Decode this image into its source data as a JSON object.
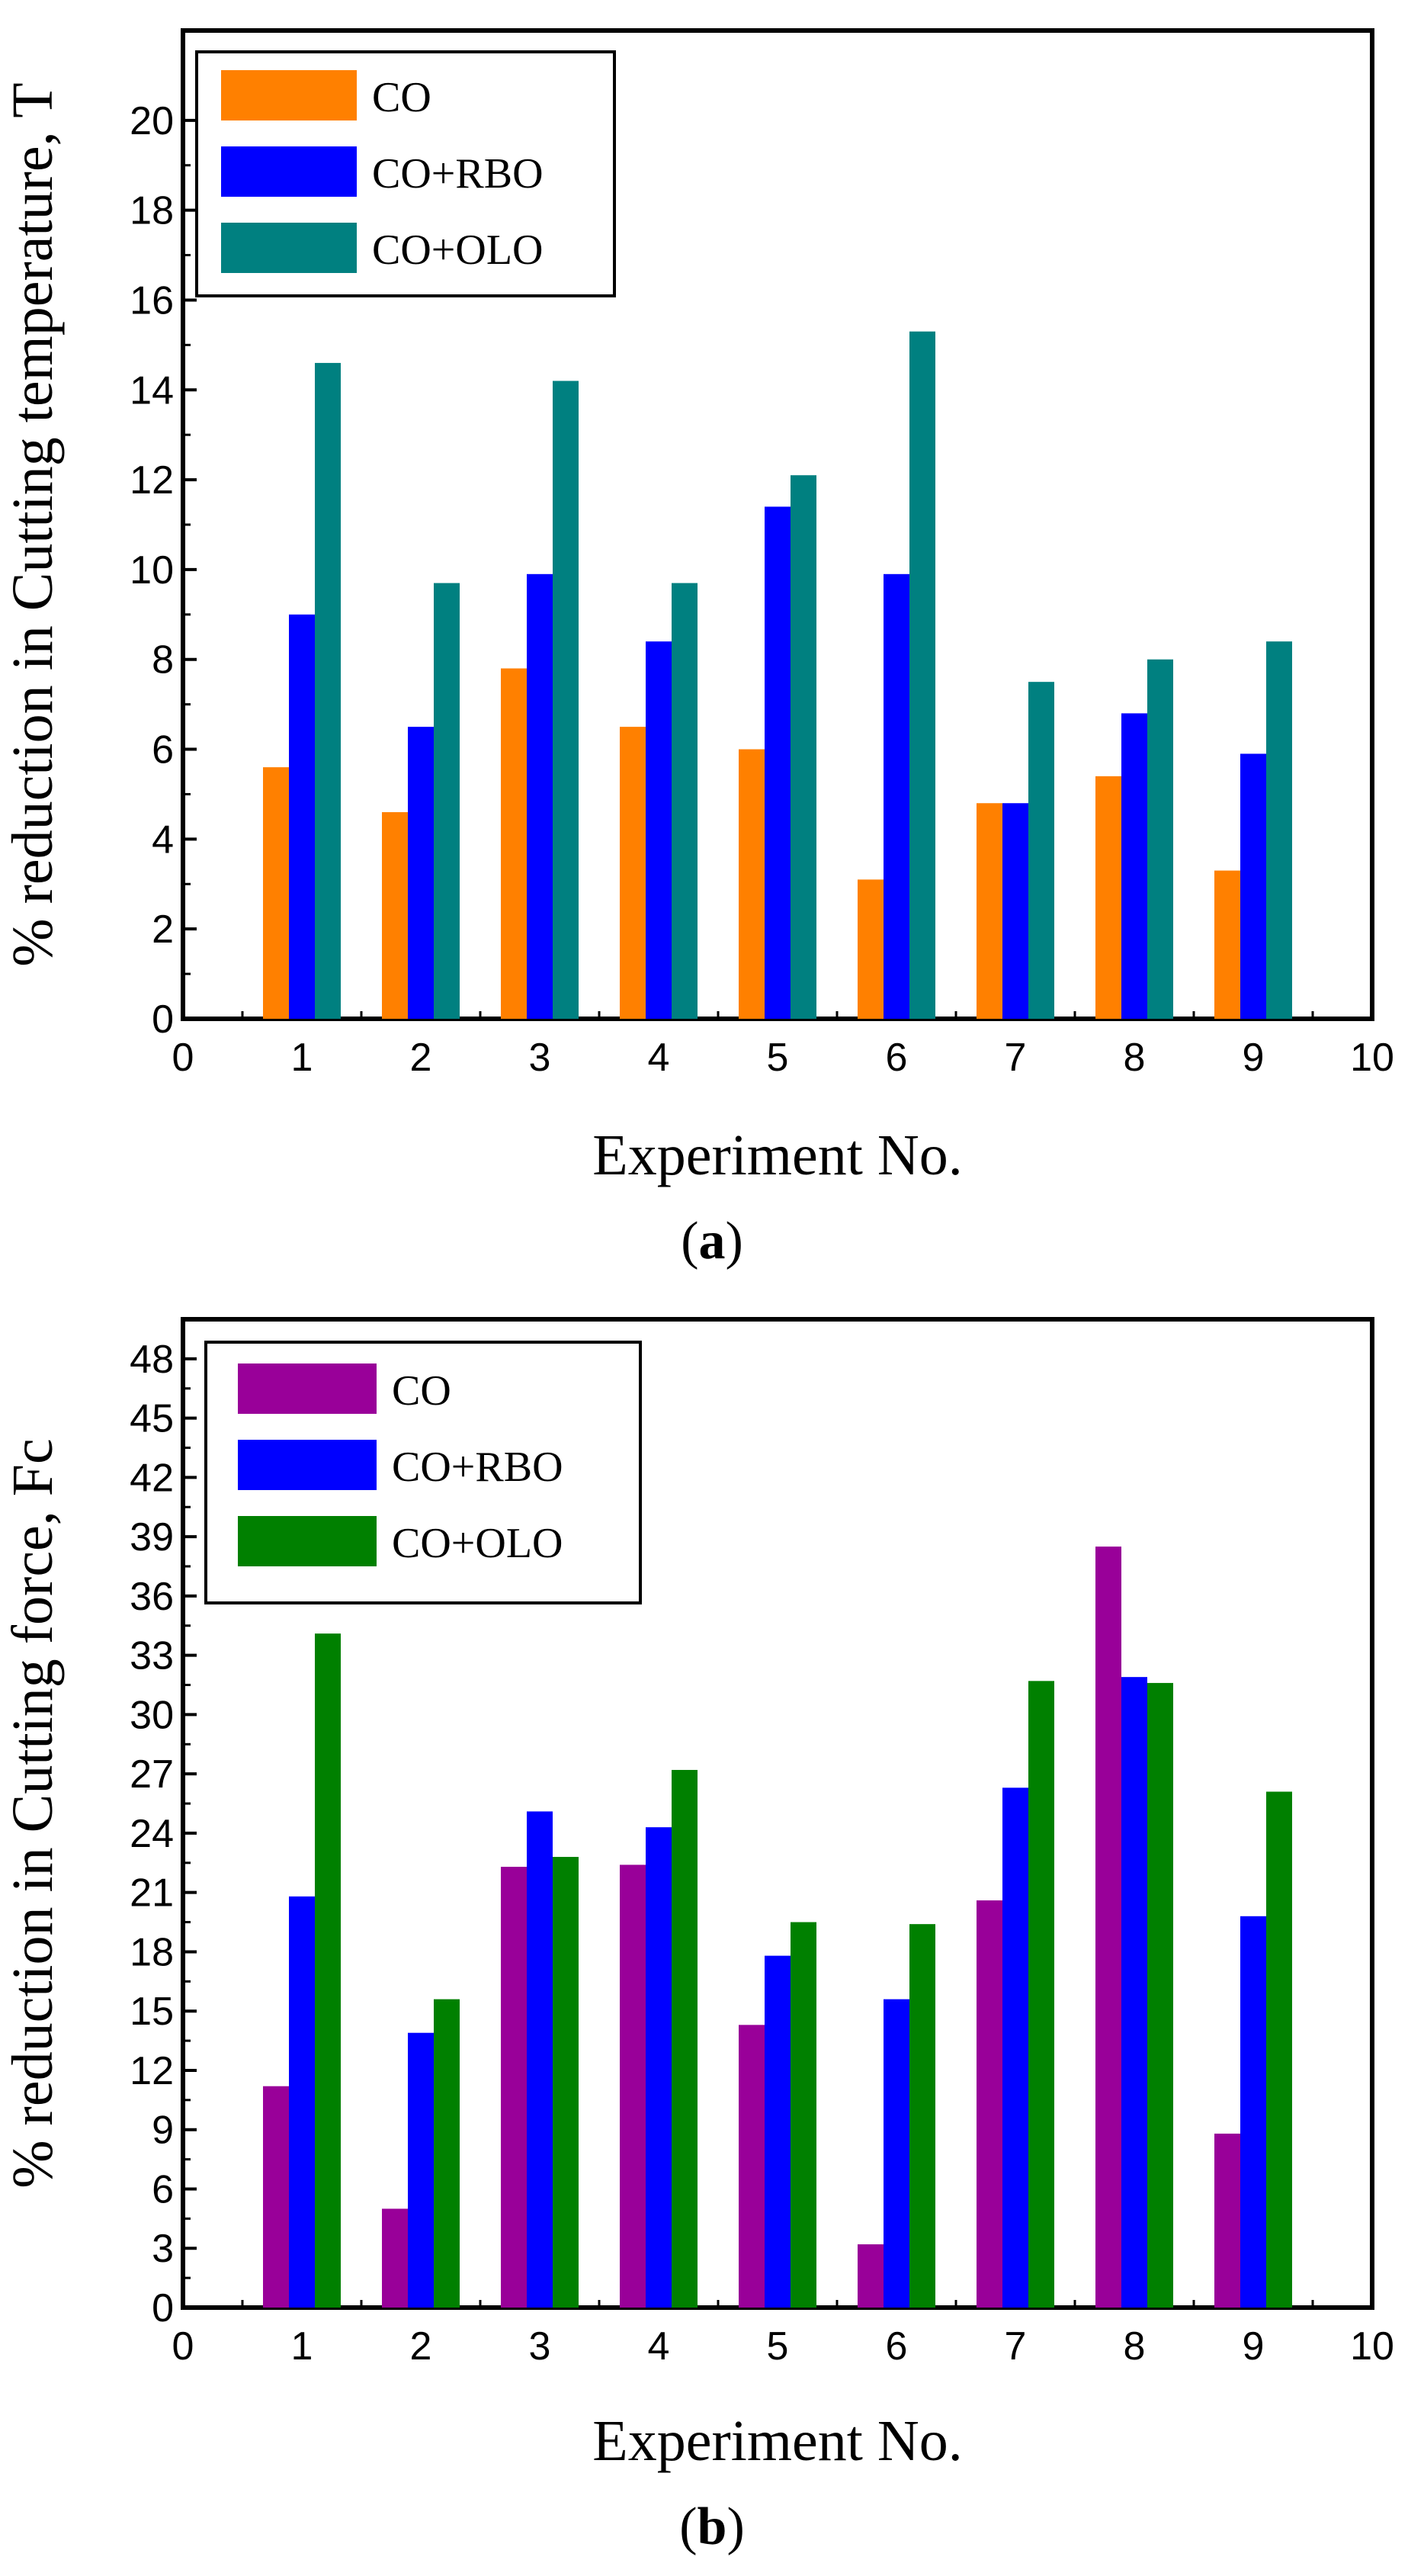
{
  "chart_data": [
    {
      "type": "bar",
      "panel_label": "a",
      "title": "",
      "xlabel": "Experiment No.",
      "ylabel": "% reduction in Cutting temperature, T",
      "xlim": [
        0,
        10
      ],
      "ylim": [
        0,
        22
      ],
      "x_ticks": [
        0,
        1,
        2,
        3,
        4,
        5,
        6,
        7,
        8,
        9,
        10
      ],
      "y_ticks": [
        0,
        2,
        4,
        6,
        8,
        10,
        12,
        14,
        16,
        18,
        20
      ],
      "categories": [
        1,
        2,
        3,
        4,
        5,
        6,
        7,
        8,
        9
      ],
      "legend_position": "top-left",
      "series": [
        {
          "name": "CO",
          "color": "#ff8000",
          "values": [
            5.6,
            4.6,
            7.8,
            6.5,
            6.0,
            3.1,
            4.8,
            5.4,
            3.3
          ]
        },
        {
          "name": "CO+RBO",
          "color": "#0000ff",
          "values": [
            9.0,
            6.5,
            9.9,
            8.4,
            11.4,
            9.9,
            4.8,
            6.8,
            5.9
          ]
        },
        {
          "name": "CO+OLO",
          "color": "#008080",
          "values": [
            14.6,
            9.7,
            14.2,
            9.7,
            12.1,
            15.3,
            7.5,
            8.0,
            8.4
          ]
        }
      ]
    },
    {
      "type": "bar",
      "panel_label": "b",
      "title": "",
      "xlabel": "Experiment No.",
      "ylabel": "% reduction in Cutting force, Fc",
      "xlim": [
        0,
        10
      ],
      "ylim": [
        0,
        50
      ],
      "x_ticks": [
        0,
        1,
        2,
        3,
        4,
        5,
        6,
        7,
        8,
        9,
        10
      ],
      "y_ticks": [
        0,
        3,
        6,
        9,
        12,
        15,
        18,
        21,
        24,
        27,
        30,
        33,
        36,
        39,
        42,
        45,
        48
      ],
      "categories": [
        1,
        2,
        3,
        4,
        5,
        6,
        7,
        8,
        9
      ],
      "legend_position": "top-left",
      "series": [
        {
          "name": "CO",
          "color": "#990099",
          "values": [
            11.2,
            5.0,
            22.3,
            22.4,
            14.3,
            3.2,
            20.6,
            38.5,
            8.8
          ]
        },
        {
          "name": "CO+RBO",
          "color": "#0000ff",
          "values": [
            20.8,
            13.9,
            25.1,
            24.3,
            17.8,
            15.6,
            26.3,
            31.9,
            19.8
          ]
        },
        {
          "name": "CO+OLO",
          "color": "#008000",
          "values": [
            34.1,
            15.6,
            22.8,
            27.2,
            19.5,
            19.4,
            31.7,
            31.6,
            26.1
          ]
        }
      ]
    }
  ]
}
